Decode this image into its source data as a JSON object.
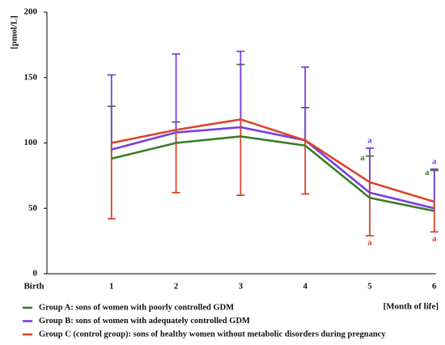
{
  "chart_data": {
    "type": "line",
    "ylabel": "[pmol/L]",
    "xlabel": "[Month of life]",
    "categories": [
      "Birth",
      "1",
      "2",
      "3",
      "4",
      "5",
      "6"
    ],
    "ylim": [
      0,
      200
    ],
    "yticks": [
      0,
      50,
      100,
      150,
      200
    ],
    "grid": false,
    "legend": "bottom",
    "series": [
      {
        "name": "Group A: sons of women with poorly controlled GDM",
        "color": "#3b7d2a",
        "values": [
          null,
          88,
          100,
          105,
          98,
          58,
          48
        ],
        "errors": [
          null,
          40,
          16,
          55,
          29,
          32,
          31
        ],
        "error_direction": "up",
        "annotations": [
          null,
          null,
          null,
          null,
          null,
          "a",
          "a"
        ]
      },
      {
        "name": "Group B: sons of women with adequately controlled GDM",
        "color": "#7a3fe0",
        "values": [
          null,
          95,
          108,
          112,
          102,
          62,
          50
        ],
        "errors": [
          null,
          57,
          60,
          58,
          56,
          34,
          30
        ],
        "error_direction": "up",
        "annotations": [
          null,
          null,
          null,
          null,
          null,
          "a",
          "a"
        ]
      },
      {
        "name": "Group C (control group): sons of healthy women without metabolic disorders during pregnancy",
        "color": "#d8452a",
        "values": [
          null,
          100,
          110,
          118,
          102,
          70,
          55
        ],
        "errors": [
          null,
          58,
          48,
          58,
          41,
          41,
          23
        ],
        "error_direction": "down",
        "annotations": [
          null,
          null,
          null,
          null,
          null,
          "a",
          "a"
        ]
      }
    ]
  }
}
